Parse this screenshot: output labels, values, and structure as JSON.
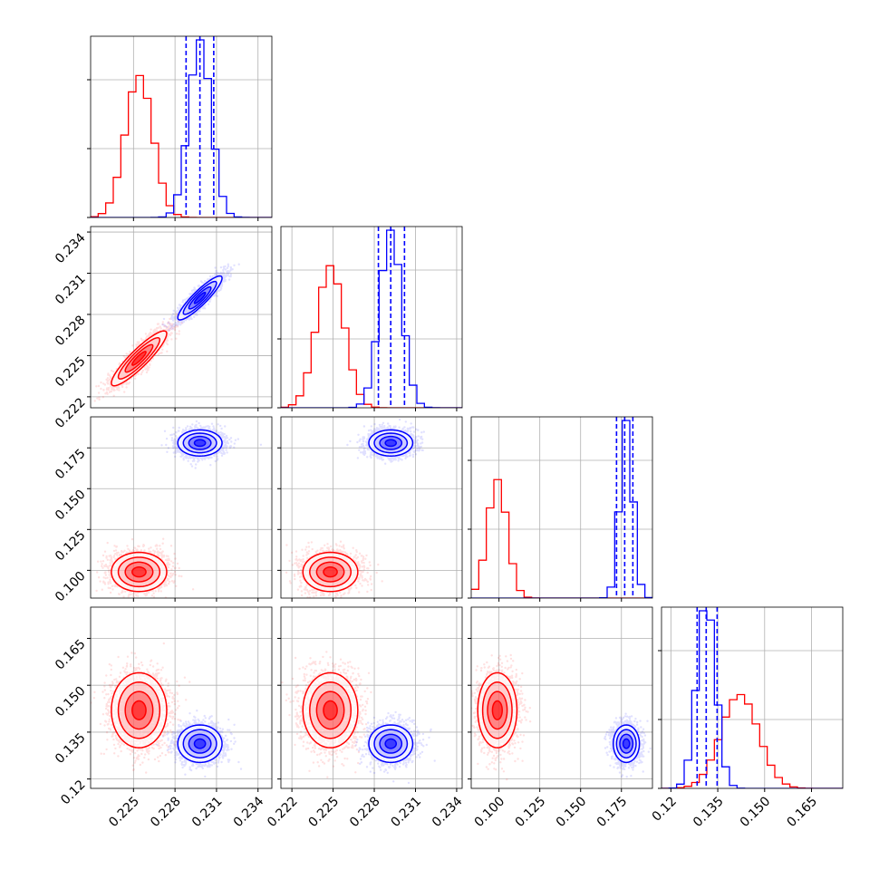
{
  "chart_data": {
    "type": "corner",
    "parameters": [
      {
        "lim": [
          0.2219,
          0.235
        ],
        "ticks": [
          0.225,
          0.228,
          0.231,
          0.234
        ]
      },
      {
        "lim": [
          0.2212,
          0.2344
        ],
        "ticks": [
          0.222,
          0.225,
          0.228,
          0.231,
          0.234
        ]
      },
      {
        "lim": [
          0.083,
          0.194
        ],
        "ticks": [
          {
            "value": 0.1,
            "label": "0.100"
          },
          0.125,
          {
            "value": 0.15,
            "label": "0.150"
          },
          0.175
        ]
      },
      {
        "lim": [
          0.117,
          0.175
        ],
        "ticks": [
          0.12,
          0.135,
          {
            "value": 0.15,
            "label": "0.150"
          },
          0.165
        ]
      }
    ],
    "contour_levels": [
      0.5,
      1,
      1.5,
      2
    ],
    "grid": true,
    "series": [
      {
        "color": "#ff0000",
        "mean": [
          0.2254,
          0.2248,
          0.099,
          0.142
        ],
        "std": [
          0.001,
          0.001,
          0.006,
          0.006
        ],
        "corr": [
          [
            1,
            0.9,
            0,
            0
          ],
          [
            0.9,
            1,
            0,
            0
          ],
          [
            0,
            0,
            1,
            0
          ],
          [
            0,
            0,
            0,
            1
          ]
        ]
      },
      {
        "color": "#0000ff",
        "mean": [
          0.2298,
          0.2292,
          0.178,
          0.1313
        ],
        "std": [
          0.0008,
          0.0008,
          0.004,
          0.003
        ],
        "corr": [
          [
            1,
            0.9,
            0,
            0
          ],
          [
            0.9,
            1,
            0,
            0
          ],
          [
            0,
            0,
            1,
            0
          ],
          [
            0,
            0,
            0,
            1
          ]
        ],
        "quantiles": [
          [
            0.2288,
            0.2298,
            0.2308
          ],
          [
            0.2283,
            0.2292,
            0.2302
          ],
          [
            0.172,
            0.177,
            0.182
          ],
          [
            0.1284,
            0.1313,
            0.1348
          ]
        ]
      }
    ]
  }
}
